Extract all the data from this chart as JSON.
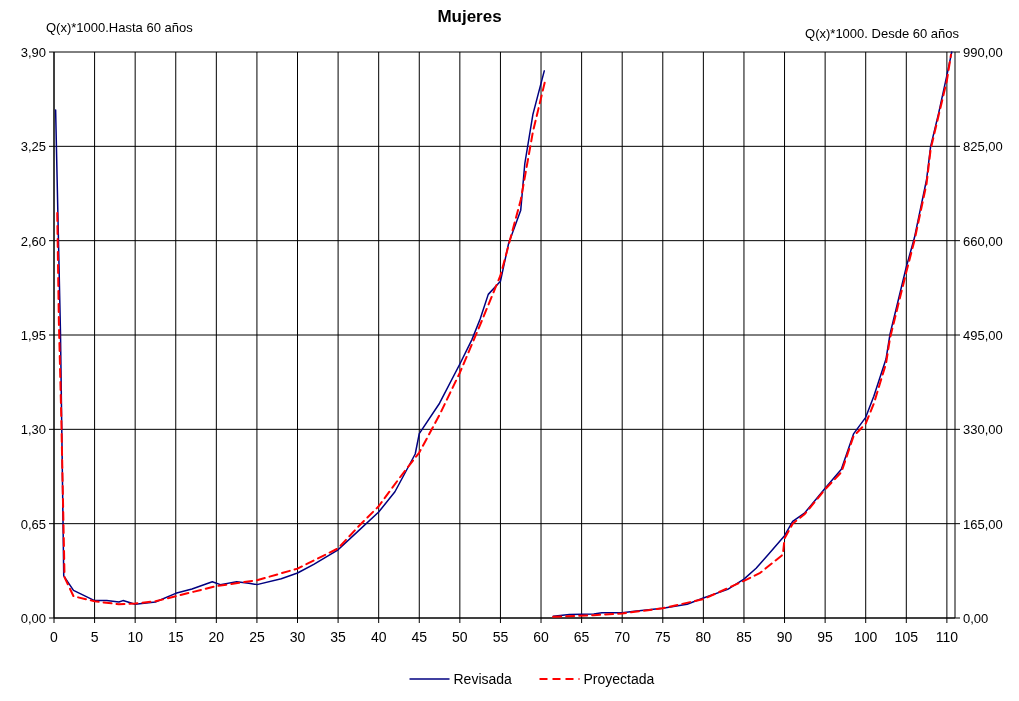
{
  "chart_data": {
    "type": "line",
    "title": "Mujeres",
    "ylabel": "Q(x)*1000.Hasta 60 años",
    "y2label": "Q(x)*1000. Desde 60 años",
    "xlim": [
      0,
      111
    ],
    "xticks": [
      0,
      5,
      10,
      15,
      20,
      25,
      30,
      35,
      40,
      45,
      50,
      55,
      60,
      65,
      70,
      75,
      80,
      85,
      90,
      95,
      100,
      105,
      110
    ],
    "ylim": [
      0,
      3.9
    ],
    "yticks": [
      {
        "value": 0,
        "label": "0,00"
      },
      {
        "value": 0.65,
        "label": "0,65"
      },
      {
        "value": 1.3,
        "label": "1,30"
      },
      {
        "value": 1.95,
        "label": "1,95"
      },
      {
        "value": 2.6,
        "label": "2,60"
      },
      {
        "value": 3.25,
        "label": "3,25"
      },
      {
        "value": 3.9,
        "label": "3,90"
      }
    ],
    "y2lim": [
      0,
      990
    ],
    "y2ticks": [
      {
        "value": 0,
        "label": "0,00"
      },
      {
        "value": 165,
        "label": "165,00"
      },
      {
        "value": 330,
        "label": "330,00"
      },
      {
        "value": 495,
        "label": "495,00"
      },
      {
        "value": 660,
        "label": "660,00"
      },
      {
        "value": 825,
        "label": "825,00"
      },
      {
        "value": 990,
        "label": "990,00"
      }
    ],
    "grid": true,
    "legend": "bottom",
    "series": [
      {
        "name": "Revisada",
        "color": "#000080",
        "line_style": "solid",
        "x": [
          0.2,
          0.8,
          1.2,
          2.4,
          5,
          6.5,
          8,
          8.5,
          10,
          12.5,
          15,
          17,
          19.5,
          20.5,
          22.5,
          24,
          25,
          28,
          30,
          32,
          35,
          37.5,
          40,
          42,
          44.5,
          45,
          47.5,
          50,
          51.5,
          52.5,
          53.5,
          55,
          56,
          57.5,
          58,
          59,
          60.4
        ],
        "values": [
          3.5,
          1.96,
          0.29,
          0.19,
          0.12,
          0.12,
          0.11,
          0.12,
          0.095,
          0.11,
          0.17,
          0.2,
          0.25,
          0.23,
          0.25,
          0.24,
          0.23,
          0.27,
          0.31,
          0.37,
          0.47,
          0.6,
          0.73,
          0.87,
          1.13,
          1.27,
          1.48,
          1.75,
          1.92,
          2.06,
          2.23,
          2.32,
          2.58,
          2.81,
          3.13,
          3.47,
          3.77
        ]
      },
      {
        "name": "Proyectada",
        "color": "#ff0000",
        "line_style": "dashed",
        "x": [
          0.4,
          0.6,
          0.9,
          1.3,
          2.4,
          5,
          8,
          10,
          12.5,
          15,
          20,
          25,
          30,
          35,
          37.5,
          40,
          42.5,
          45,
          47.5,
          50,
          52.5,
          55,
          57.5,
          59,
          60.5
        ],
        "values": [
          2.79,
          2.04,
          1.38,
          0.28,
          0.15,
          0.115,
          0.095,
          0.1,
          0.115,
          0.15,
          0.22,
          0.26,
          0.34,
          0.48,
          0.63,
          0.77,
          0.96,
          1.14,
          1.4,
          1.69,
          2.02,
          2.36,
          2.88,
          3.35,
          3.7
        ]
      },
      {
        "color": "#000080",
        "line_style": "solid",
        "axis": "y2",
        "x": [
          61.5,
          63.5,
          66.5,
          67.5,
          70,
          71.5,
          75,
          78,
          80,
          83,
          85,
          86.5,
          88,
          90,
          91,
          92.5,
          95,
          97,
          98.5,
          100,
          101,
          102.5,
          103,
          105,
          106,
          107.5,
          108,
          109,
          110,
          110.6
        ],
        "values": [
          3,
          6,
          7,
          9,
          9,
          12,
          17,
          24,
          35,
          50,
          68,
          87,
          111,
          144,
          169,
          184,
          227,
          260,
          322,
          351,
          388,
          453,
          497,
          614,
          665,
          767,
          825,
          884,
          949,
          990
        ]
      },
      {
        "color": "#ff0000",
        "line_style": "dashed",
        "axis": "y2",
        "x": [
          61.5,
          66.5,
          70,
          75,
          80,
          85,
          87,
          89.8,
          90,
          91,
          92.5,
          95,
          97,
          98.5,
          100,
          101,
          102.5,
          103,
          105,
          106,
          107.5,
          108,
          109,
          110,
          110.5
        ],
        "values": [
          2,
          5,
          8,
          17,
          33,
          65,
          79,
          111,
          139,
          165,
          182,
          225,
          255,
          318,
          340,
          375,
          445,
          490,
          605,
          660,
          760,
          820,
          880,
          940,
          985
        ]
      }
    ]
  }
}
